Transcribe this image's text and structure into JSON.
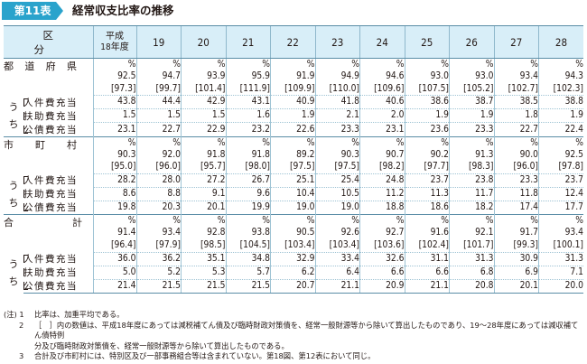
{
  "header": {
    "badge": "第11表",
    "title": "経常収支比率の推移"
  },
  "columns": {
    "label": "区　分",
    "heisei_line1": "平成",
    "heisei_line2": "18年度",
    "years": [
      "19",
      "20",
      "21",
      "22",
      "23",
      "24",
      "25",
      "26",
      "27",
      "28"
    ]
  },
  "unit": "%",
  "uchi": [
    "う",
    "ち"
  ],
  "sections": [
    {
      "label": "都道府県",
      "label_chars": [
        "都",
        "道",
        "府",
        "県"
      ],
      "values": [
        "92.5",
        "94.7",
        "93.9",
        "95.9",
        "91.9",
        "94.9",
        "94.6",
        "93.0",
        "93.0",
        "93.4",
        "94.3"
      ],
      "brackets": [
        "[97.3]",
        "[99.7]",
        "[101.4]",
        "[111.9]",
        "[109.9]",
        "[110.0]",
        "[109.6]",
        "[107.5]",
        "[105.2]",
        "[102.7]",
        "[102.3]"
      ],
      "subs": [
        {
          "label": "人件費充当",
          "values": [
            "43.8",
            "44.4",
            "42.9",
            "43.1",
            "40.9",
            "41.8",
            "40.6",
            "38.6",
            "38.7",
            "38.5",
            "38.8"
          ]
        },
        {
          "label": "扶助費充当",
          "values": [
            "1.5",
            "1.5",
            "1.5",
            "1.6",
            "1.9",
            "2.1",
            "2.0",
            "1.9",
            "1.9",
            "1.8",
            "1.9"
          ]
        },
        {
          "label": "公債費充当",
          "values": [
            "23.1",
            "22.7",
            "22.9",
            "23.2",
            "22.6",
            "23.3",
            "23.1",
            "23.6",
            "23.3",
            "22.7",
            "22.4"
          ]
        }
      ]
    },
    {
      "label": "市町村",
      "label_chars": [
        "市",
        "町",
        "村"
      ],
      "values": [
        "90.3",
        "92.0",
        "91.8",
        "91.8",
        "89.2",
        "90.3",
        "90.7",
        "90.2",
        "91.3",
        "90.0",
        "92.5"
      ],
      "brackets": [
        "[95.0]",
        "[96.0]",
        "[95.7]",
        "[98.0]",
        "[97.5]",
        "[97.5]",
        "[98.2]",
        "[97.7]",
        "[98.3]",
        "[96.0]",
        "[97.8]"
      ],
      "subs": [
        {
          "label": "人件費充当",
          "values": [
            "28.2",
            "28.0",
            "27.2",
            "26.7",
            "25.1",
            "25.4",
            "24.8",
            "23.7",
            "23.8",
            "23.3",
            "23.7"
          ]
        },
        {
          "label": "扶助費充当",
          "values": [
            "8.6",
            "8.8",
            "9.1",
            "9.6",
            "10.4",
            "10.5",
            "11.2",
            "11.3",
            "11.7",
            "11.8",
            "12.4"
          ]
        },
        {
          "label": "公債費充当",
          "values": [
            "19.8",
            "20.3",
            "20.1",
            "19.9",
            "19.0",
            "19.0",
            "18.8",
            "18.6",
            "18.2",
            "17.4",
            "17.7"
          ]
        }
      ]
    },
    {
      "label": "合計",
      "label_chars": [
        "合",
        "計"
      ],
      "values": [
        "91.4",
        "93.4",
        "92.8",
        "93.8",
        "90.5",
        "92.6",
        "92.7",
        "91.6",
        "92.1",
        "91.7",
        "93.4"
      ],
      "brackets": [
        "[96.4]",
        "[97.9]",
        "[98.5]",
        "[104.5]",
        "[103.4]",
        "[103.4]",
        "[103.6]",
        "[102.4]",
        "[101.7]",
        "[99.3]",
        "[100.1]"
      ],
      "subs": [
        {
          "label": "人件費充当",
          "values": [
            "36.0",
            "36.2",
            "35.1",
            "34.8",
            "32.9",
            "33.4",
            "32.6",
            "31.1",
            "31.3",
            "30.9",
            "31.3"
          ]
        },
        {
          "label": "扶助費充当",
          "values": [
            "5.0",
            "5.2",
            "5.3",
            "5.7",
            "6.2",
            "6.4",
            "6.6",
            "6.6",
            "6.8",
            "6.9",
            "7.1"
          ]
        },
        {
          "label": "公債費充当",
          "values": [
            "21.4",
            "21.5",
            "21.5",
            "21.5",
            "20.7",
            "21.1",
            "20.9",
            "21.1",
            "20.8",
            "20.1",
            "20.0"
          ]
        }
      ]
    }
  ],
  "notes": [
    {
      "num": "(注) 1",
      "text": "比率は、加重平均である。"
    },
    {
      "num": "2",
      "text": "［　］内の数値は、平成18年度にあっては減税補てん債及び臨時財政対策債を、経常一般財源等から除いて算出したものであり、19～28年度にあっては減収補てん債特例"
    },
    {
      "num": "",
      "text": "分及び臨時財政対策債を、経常一般財源等から除いて算出したものである。"
    },
    {
      "num": "3",
      "text": "合計及び市町村には、特別区及び一部事務組合等は含まれていない。第18図、第12表において同じ。"
    }
  ]
}
